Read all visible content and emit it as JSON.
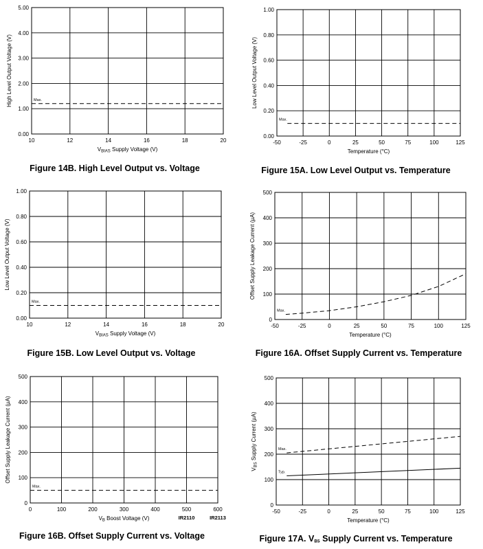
{
  "chart_data": [
    {
      "id": "fig14b",
      "type": "line",
      "caption": "Figure 14B.  High Level Output vs. Voltage",
      "ylabel": "High Level Output Voltage (V)",
      "xlabel": {
        "pre": "V",
        "sub": "BIAS",
        "post": " Supply Voltage (V)"
      },
      "xlim": [
        10,
        20
      ],
      "ylim": [
        0,
        5
      ],
      "xticks": [
        "10",
        "12",
        "14",
        "16",
        "18",
        "20"
      ],
      "yticks": [
        "0.00",
        "1.00",
        "2.00",
        "3.00",
        "4.00",
        "5.00"
      ],
      "grid": true,
      "series": [
        {
          "name": "Max.",
          "style": "dashed",
          "x": [
            10,
            20
          ],
          "y": [
            1.2,
            1.2
          ]
        }
      ]
    },
    {
      "id": "fig15a",
      "type": "line",
      "caption": "Figure 15A.  Low Level Output vs. Temperature",
      "ylabel": "Low Level Output Voltage (V)",
      "xlabel": {
        "pre": "Temperature (°C)",
        "sub": "",
        "post": ""
      },
      "xlim": [
        -50,
        125
      ],
      "ylim": [
        0,
        1
      ],
      "xticks": [
        "-50",
        "-25",
        "0",
        "25",
        "50",
        "75",
        "100",
        "125"
      ],
      "yticks": [
        "0.00",
        "0.20",
        "0.40",
        "0.60",
        "0.80",
        "1.00"
      ],
      "grid": true,
      "series": [
        {
          "name": "Max.",
          "style": "dashed",
          "x": [
            -40,
            125
          ],
          "y": [
            0.1,
            0.1
          ]
        }
      ]
    },
    {
      "id": "fig15b",
      "type": "line",
      "caption": "Figure 15B.  Low Level Output vs. Voltage",
      "ylabel": "Low Level Output Voltage (V)",
      "xlabel": {
        "pre": "V",
        "sub": "BIAS",
        "post": " Supply Voltage (V)"
      },
      "xlim": [
        10,
        20
      ],
      "ylim": [
        0,
        1
      ],
      "xticks": [
        "10",
        "12",
        "14",
        "16",
        "18",
        "20"
      ],
      "yticks": [
        "0.00",
        "0.20",
        "0.40",
        "0.60",
        "0.80",
        "1.00"
      ],
      "grid": true,
      "series": [
        {
          "name": "Max.",
          "style": "dashed",
          "x": [
            10,
            20
          ],
          "y": [
            0.1,
            0.1
          ]
        }
      ]
    },
    {
      "id": "fig16a",
      "type": "line",
      "caption": "Figure 16A.  Offset Supply Current vs. Temperature",
      "ylabel": "Offset Supply Leakage Current (µA)",
      "xlabel": {
        "pre": "Temperature (°C)",
        "sub": "",
        "post": ""
      },
      "xlim": [
        -50,
        125
      ],
      "ylim": [
        0,
        500
      ],
      "xticks": [
        "-50",
        "-25",
        "0",
        "25",
        "50",
        "75",
        "100",
        "125"
      ],
      "yticks": [
        "0",
        "100",
        "200",
        "300",
        "400",
        "500"
      ],
      "grid": true,
      "series": [
        {
          "name": "Max.",
          "style": "dashed",
          "x": [
            -40,
            -25,
            0,
            25,
            50,
            75,
            100,
            125
          ],
          "y": [
            20,
            25,
            35,
            50,
            70,
            95,
            130,
            180
          ]
        }
      ]
    },
    {
      "id": "fig16b",
      "type": "line",
      "caption": "Figure 16B.  Offset Supply Current vs. Voltage",
      "ylabel": "Offset Supply Leakage Current (µA)",
      "xlabel": {
        "pre": "V",
        "sub": "B",
        "post": " Boost Voltage (V)"
      },
      "xlim": [
        0,
        600
      ],
      "ylim": [
        0,
        500
      ],
      "xticks": [
        "0",
        "100",
        "200",
        "300",
        "400",
        "500",
        "600"
      ],
      "yticks": [
        "0",
        "100",
        "200",
        "300",
        "400",
        "500"
      ],
      "grid": true,
      "series": [
        {
          "name": "Max.",
          "style": "dashed",
          "x": [
            0,
            600
          ],
          "y": [
            50,
            50
          ]
        }
      ],
      "notes": [
        {
          "text": "IR2110",
          "x": 500
        },
        {
          "text": "IR2113",
          "x": 600
        }
      ]
    },
    {
      "id": "fig17a",
      "type": "line",
      "caption": {
        "pre": "Figure 17A.  V",
        "sub": "BS",
        "post": " Supply Current vs. Temperature"
      },
      "ylabel": {
        "pre": "V",
        "sub": "BS",
        "post": " Supply Current (µA)"
      },
      "xlabel": {
        "pre": "Temperature (°C)",
        "sub": "",
        "post": ""
      },
      "xlim": [
        -50,
        125
      ],
      "ylim": [
        0,
        500
      ],
      "xticks": [
        "-50",
        "-25",
        "0",
        "25",
        "50",
        "75",
        "100",
        "125"
      ],
      "yticks": [
        "0",
        "100",
        "200",
        "300",
        "400",
        "500"
      ],
      "grid": true,
      "series": [
        {
          "name": "Max.",
          "style": "dashed",
          "x": [
            -40,
            125
          ],
          "y": [
            205,
            270
          ]
        },
        {
          "name": "Typ.",
          "style": "solid",
          "x": [
            -40,
            125
          ],
          "y": [
            115,
            145
          ]
        }
      ]
    }
  ]
}
